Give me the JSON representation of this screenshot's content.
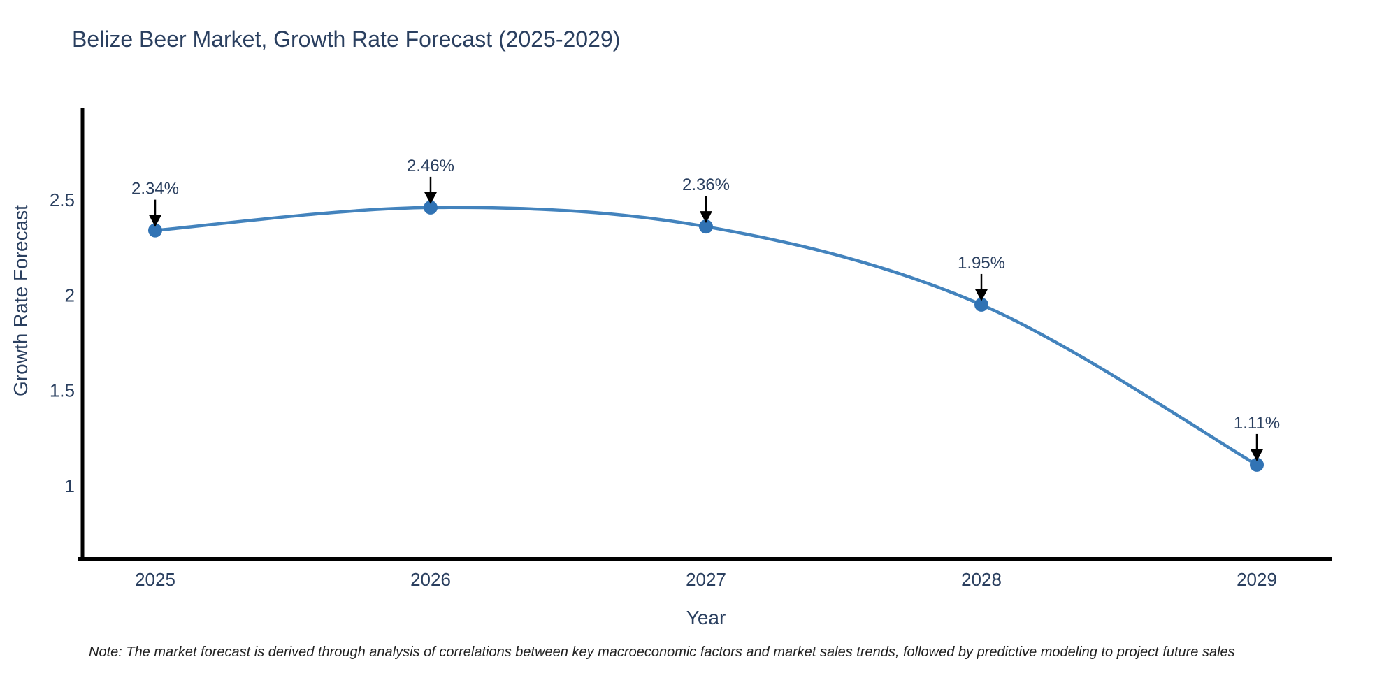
{
  "page": {
    "note": "Note: The market forecast is derived through analysis of correlations between key macroeconomic factors and market sales trends, followed by predictive modeling to project future sales"
  },
  "chart_data": {
    "type": "line",
    "title": "Belize Beer Market, Growth Rate Forecast (2025-2029)",
    "xlabel": "Year",
    "ylabel": "Growth Rate Forecast",
    "x": [
      2025,
      2026,
      2027,
      2028,
      2029
    ],
    "series": [
      {
        "name": "Growth Rate Forecast",
        "values": [
          2.34,
          2.46,
          2.36,
          1.95,
          1.11
        ]
      }
    ],
    "point_labels": [
      "2.34%",
      "2.46%",
      "2.36%",
      "1.95%",
      "1.11%"
    ],
    "yticks": [
      2.5,
      2,
      1.5,
      1
    ],
    "ylim": [
      0.62,
      2.98
    ],
    "grid": false,
    "legend_position": "none",
    "line_shape": "spline",
    "marker": "circle",
    "colors": {
      "line": "#4383bd",
      "marker": "#3173b4",
      "axis": "#000000",
      "tick_text": "#2a3f5f",
      "annotation_text": "#2a3f5f",
      "arrow": "#000000",
      "title_text": "#2a3f5f",
      "note_text": "#222222"
    }
  }
}
